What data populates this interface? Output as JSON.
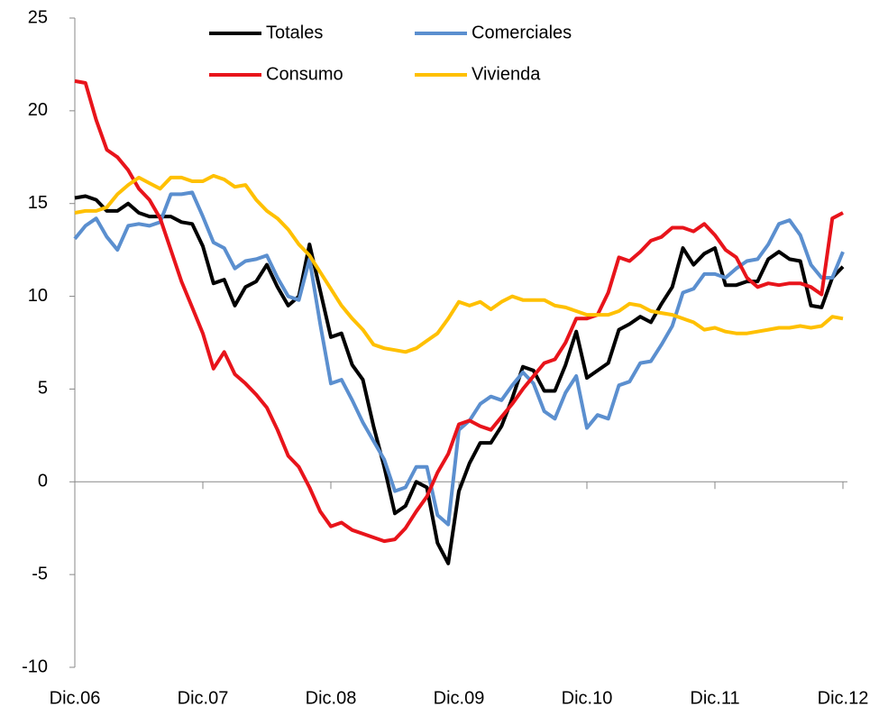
{
  "chart_data": {
    "type": "line",
    "categories": [
      "Dic.06",
      null,
      null,
      null,
      null,
      null,
      null,
      null,
      null,
      null,
      null,
      null,
      "Dic.07",
      null,
      null,
      null,
      null,
      null,
      null,
      null,
      null,
      null,
      null,
      null,
      "Dic.08",
      null,
      null,
      null,
      null,
      null,
      null,
      null,
      null,
      null,
      null,
      null,
      "Dic.09",
      null,
      null,
      null,
      null,
      null,
      null,
      null,
      null,
      null,
      null,
      null,
      "Dic.10",
      null,
      null,
      null,
      null,
      null,
      null,
      null,
      null,
      null,
      null,
      null,
      "Dic.11",
      null,
      null,
      null,
      null,
      null,
      null,
      null,
      null,
      null,
      null,
      null,
      "Dic.12"
    ],
    "series": [
      {
        "name": "Totales",
        "color": "#000000",
        "values": [
          15.3,
          15.4,
          15.2,
          14.6,
          14.6,
          15.0,
          14.5,
          14.3,
          14.3,
          14.3,
          14.0,
          13.9,
          12.7,
          10.7,
          10.9,
          9.5,
          10.5,
          10.8,
          11.7,
          10.5,
          9.5,
          10.0,
          12.8,
          10.3,
          7.8,
          8.0,
          6.3,
          5.5,
          3.0,
          0.8,
          -1.7,
          -1.3,
          0.0,
          -0.3,
          -3.3,
          -4.4,
          -0.5,
          1.0,
          2.1,
          2.1,
          3.0,
          4.5,
          6.2,
          6.0,
          4.9,
          4.9,
          6.3,
          8.1,
          5.6,
          6.0,
          6.4,
          8.2,
          8.5,
          8.9,
          8.6,
          9.6,
          10.5,
          12.6,
          11.7,
          12.3,
          12.6,
          10.6,
          10.6,
          10.8,
          10.8,
          12.0,
          12.4,
          12.0,
          11.9,
          9.5,
          9.4,
          11.0,
          11.6
        ]
      },
      {
        "name": "Comerciales",
        "color": "#5b8fcf",
        "values": [
          13.1,
          13.8,
          14.2,
          13.2,
          12.5,
          13.8,
          13.9,
          13.8,
          14.0,
          15.5,
          15.5,
          15.6,
          14.3,
          12.9,
          12.6,
          11.5,
          11.9,
          12.0,
          12.2,
          11.0,
          10.0,
          9.8,
          12.0,
          8.5,
          5.3,
          5.5,
          4.4,
          3.2,
          2.2,
          1.2,
          -0.5,
          -0.3,
          0.8,
          0.8,
          -1.8,
          -2.3,
          2.8,
          3.3,
          4.2,
          4.6,
          4.4,
          5.2,
          5.9,
          5.3,
          3.8,
          3.4,
          4.8,
          5.7,
          2.9,
          3.6,
          3.4,
          5.2,
          5.4,
          6.4,
          6.5,
          7.4,
          8.4,
          10.2,
          10.4,
          11.2,
          11.2,
          11.0,
          11.5,
          11.9,
          12.0,
          12.8,
          13.9,
          14.1,
          13.3,
          11.7,
          11.0,
          11.0,
          12.4
        ]
      },
      {
        "name": "Consumo",
        "color": "#e8141b",
        "values": [
          21.6,
          21.5,
          19.5,
          17.9,
          17.5,
          16.8,
          15.8,
          15.2,
          14.2,
          12.5,
          10.8,
          9.4,
          8.0,
          6.1,
          7.0,
          5.8,
          5.3,
          4.7,
          4.0,
          2.8,
          1.4,
          0.8,
          -0.3,
          -1.6,
          -2.4,
          -2.2,
          -2.6,
          -2.8,
          -3.0,
          -3.2,
          -3.1,
          -2.5,
          -1.6,
          -0.8,
          0.5,
          1.5,
          3.1,
          3.3,
          3.0,
          2.8,
          3.5,
          4.2,
          5.0,
          5.7,
          6.4,
          6.6,
          7.5,
          8.8,
          8.8,
          9.0,
          10.2,
          12.1,
          11.9,
          12.4,
          13.0,
          13.2,
          13.7,
          13.7,
          13.5,
          13.9,
          13.3,
          12.5,
          12.1,
          11.0,
          10.5,
          10.7,
          10.6,
          10.7,
          10.7,
          10.5,
          10.1,
          14.2,
          14.5
        ]
      },
      {
        "name": "Vivienda",
        "color": "#ffc000",
        "values": [
          14.5,
          14.6,
          14.6,
          14.8,
          15.5,
          16.0,
          16.4,
          16.1,
          15.8,
          16.4,
          16.4,
          16.2,
          16.2,
          16.5,
          16.3,
          15.9,
          16.0,
          15.2,
          14.6,
          14.2,
          13.6,
          12.8,
          12.2,
          11.3,
          10.4,
          9.5,
          8.8,
          8.2,
          7.4,
          7.2,
          7.1,
          7.0,
          7.2,
          7.6,
          8.0,
          8.8,
          9.7,
          9.5,
          9.7,
          9.3,
          9.7,
          10.0,
          9.8,
          9.8,
          9.8,
          9.5,
          9.4,
          9.2,
          9.0,
          9.0,
          9.0,
          9.2,
          9.6,
          9.5,
          9.2,
          9.1,
          9.0,
          8.8,
          8.6,
          8.2,
          8.3,
          8.1,
          8.0,
          8.0,
          8.1,
          8.2,
          8.3,
          8.3,
          8.4,
          8.3,
          8.4,
          8.9,
          8.8
        ]
      }
    ],
    "ylim": [
      -10,
      25
    ],
    "yticks": [
      -10,
      -5,
      0,
      5,
      10,
      15,
      20,
      25
    ],
    "grid": false,
    "legend": "upper center"
  }
}
